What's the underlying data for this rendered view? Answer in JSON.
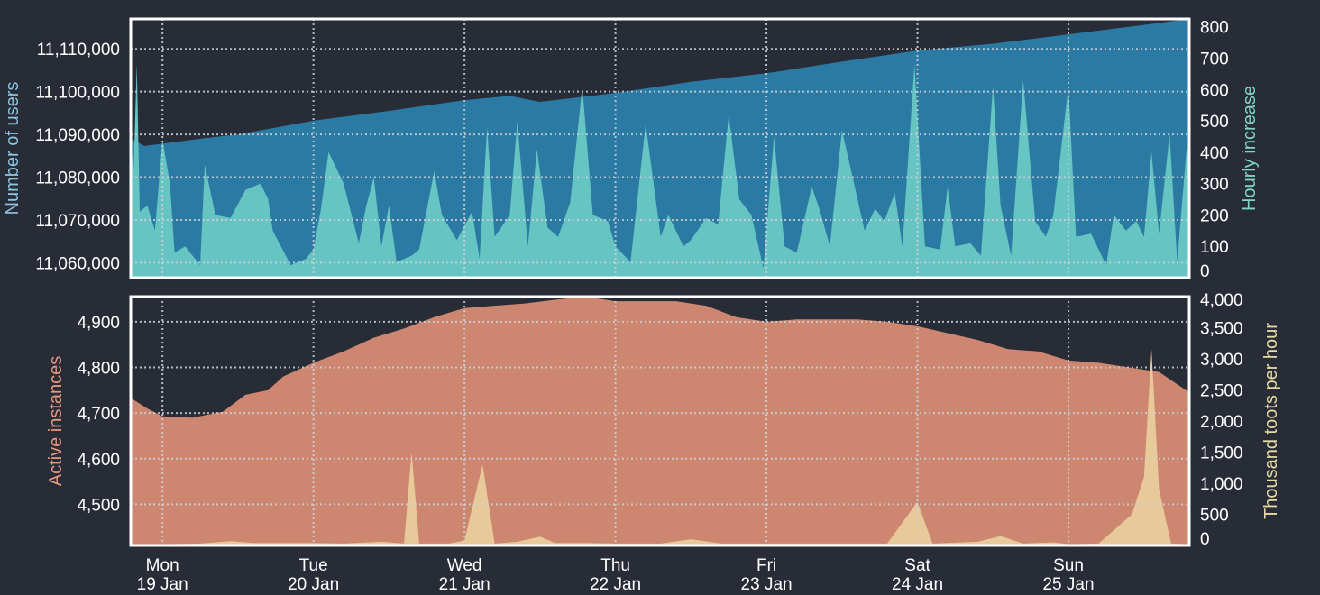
{
  "colors": {
    "background": "#282c37",
    "users_area": "#2b7aa3",
    "increase_area": "#66c4c2",
    "instances_area": "#cd8670",
    "toots_area": "#e8c99a",
    "frame": "#ffffff",
    "grid": "#cfd2d8",
    "users_label": "#8dc4e0",
    "increase_label": "#7fd6c7",
    "instances_label": "#e5987f",
    "toots_label": "#e6dba4"
  },
  "chart_data": [
    {
      "type": "area",
      "panel": "top",
      "grid": true,
      "left_axis": {
        "label": "Number of users",
        "range": [
          11056500,
          11117000
        ],
        "ticks": [
          11060000,
          11070000,
          11080000,
          11090000,
          11100000,
          11110000
        ],
        "tick_labels": [
          "11,060,000",
          "11,070,000",
          "11,080,000",
          "11,090,000",
          "11,100,000",
          "11,110,000"
        ]
      },
      "right_axis": {
        "label": "Hourly increase",
        "range": [
          0,
          825
        ],
        "ticks": [
          0,
          100,
          200,
          300,
          400,
          500,
          600,
          700,
          800
        ],
        "tick_labels": [
          "0",
          "100",
          "200",
          "300",
          "400",
          "500",
          "600",
          "700",
          "800"
        ]
      },
      "x_axis": {
        "unit": "days",
        "range": [
          -0.21,
          6.8
        ],
        "day_ticks": [
          0,
          1,
          2,
          3,
          4,
          5,
          6
        ]
      },
      "series": [
        {
          "axis": "left",
          "points": [
            [
              -0.21,
              11089000
            ],
            [
              -0.12,
              11087300
            ],
            [
              0.3,
              11089200
            ],
            [
              0.5,
              11090000
            ],
            [
              1.0,
              11093200
            ],
            [
              1.5,
              11095500
            ],
            [
              2.0,
              11098000
            ],
            [
              2.3,
              11099000
            ],
            [
              2.5,
              11097600
            ],
            [
              3.0,
              11099700
            ],
            [
              3.5,
              11102300
            ],
            [
              4.0,
              11104300
            ],
            [
              4.5,
              11107000
            ],
            [
              5.0,
              11109600
            ],
            [
              5.5,
              11111200
            ],
            [
              6.0,
              11113400
            ],
            [
              6.5,
              11115600
            ],
            [
              6.8,
              11117000
            ]
          ]
        },
        {
          "axis": "right",
          "points": [
            [
              -0.21,
              420
            ],
            [
              -0.19,
              350
            ],
            [
              -0.17,
              680
            ],
            [
              -0.15,
              210
            ],
            [
              -0.1,
              230
            ],
            [
              -0.05,
              150
            ],
            [
              0.0,
              440
            ],
            [
              0.05,
              300
            ],
            [
              0.08,
              80
            ],
            [
              0.15,
              100
            ],
            [
              0.25,
              40
            ],
            [
              0.28,
              360
            ],
            [
              0.35,
              200
            ],
            [
              0.45,
              190
            ],
            [
              0.55,
              280
            ],
            [
              0.65,
              300
            ],
            [
              0.7,
              250
            ],
            [
              0.73,
              150
            ],
            [
              0.85,
              40
            ],
            [
              0.95,
              60
            ],
            [
              1.0,
              90
            ],
            [
              1.05,
              220
            ],
            [
              1.1,
              400
            ],
            [
              1.2,
              300
            ],
            [
              1.3,
              110
            ],
            [
              1.35,
              230
            ],
            [
              1.4,
              320
            ],
            [
              1.45,
              100
            ],
            [
              1.5,
              230
            ],
            [
              1.55,
              50
            ],
            [
              1.65,
              70
            ],
            [
              1.7,
              90
            ],
            [
              1.8,
              340
            ],
            [
              1.85,
              200
            ],
            [
              1.95,
              120
            ],
            [
              2.05,
              210
            ],
            [
              2.1,
              60
            ],
            [
              2.15,
              480
            ],
            [
              2.2,
              130
            ],
            [
              2.3,
              200
            ],
            [
              2.35,
              500
            ],
            [
              2.42,
              100
            ],
            [
              2.48,
              410
            ],
            [
              2.55,
              160
            ],
            [
              2.62,
              130
            ],
            [
              2.7,
              240
            ],
            [
              2.78,
              610
            ],
            [
              2.85,
              200
            ],
            [
              2.95,
              180
            ],
            [
              3.0,
              100
            ],
            [
              3.1,
              50
            ],
            [
              3.2,
              490
            ],
            [
              3.3,
              130
            ],
            [
              3.35,
              200
            ],
            [
              3.45,
              100
            ],
            [
              3.5,
              120
            ],
            [
              3.6,
              190
            ],
            [
              3.68,
              170
            ],
            [
              3.75,
              520
            ],
            [
              3.82,
              250
            ],
            [
              3.9,
              200
            ],
            [
              3.98,
              30
            ],
            [
              4.05,
              450
            ],
            [
              4.12,
              100
            ],
            [
              4.2,
              80
            ],
            [
              4.3,
              290
            ],
            [
              4.35,
              220
            ],
            [
              4.42,
              100
            ],
            [
              4.5,
              470
            ],
            [
              4.58,
              300
            ],
            [
              4.65,
              150
            ],
            [
              4.72,
              220
            ],
            [
              4.78,
              180
            ],
            [
              4.85,
              270
            ],
            [
              4.9,
              100
            ],
            [
              4.98,
              680
            ],
            [
              5.05,
              100
            ],
            [
              5.15,
              90
            ],
            [
              5.2,
              290
            ],
            [
              5.25,
              100
            ],
            [
              5.35,
              110
            ],
            [
              5.42,
              70
            ],
            [
              5.5,
              610
            ],
            [
              5.55,
              230
            ],
            [
              5.62,
              70
            ],
            [
              5.7,
              630
            ],
            [
              5.78,
              180
            ],
            [
              5.85,
              130
            ],
            [
              5.9,
              200
            ],
            [
              6.0,
              610
            ],
            [
              6.05,
              130
            ],
            [
              6.15,
              140
            ],
            [
              6.25,
              40
            ],
            [
              6.3,
              200
            ],
            [
              6.38,
              150
            ],
            [
              6.45,
              180
            ],
            [
              6.5,
              130
            ],
            [
              6.55,
              400
            ],
            [
              6.6,
              140
            ],
            [
              6.67,
              460
            ],
            [
              6.72,
              50
            ],
            [
              6.78,
              400
            ],
            [
              6.8,
              420
            ]
          ]
        }
      ]
    },
    {
      "type": "area",
      "panel": "bottom",
      "grid": true,
      "left_axis": {
        "label": "Active instances",
        "range": [
          4410,
          4955
        ],
        "ticks": [
          4500,
          4600,
          4700,
          4800,
          4900
        ],
        "tick_labels": [
          "4,500",
          "4,600",
          "4,700",
          "4,800",
          "4,900"
        ]
      },
      "right_axis": {
        "label": "Thousand toots per hour",
        "range": [
          0,
          4000
        ],
        "ticks": [
          0,
          500,
          1000,
          1500,
          2000,
          2500,
          3000,
          3500,
          4000
        ],
        "tick_labels": [
          "0",
          "500",
          "1,000",
          "1,500",
          "2,000",
          "2,500",
          "3,000",
          "3,500",
          "4,000"
        ]
      },
      "x_axis": {
        "unit": "days",
        "range": [
          -0.21,
          6.8
        ],
        "day_ticks": [
          0,
          1,
          2,
          3,
          4,
          5,
          6
        ],
        "day_labels": [
          [
            "Mon",
            "19 Jan"
          ],
          [
            "Tue",
            "20 Jan"
          ],
          [
            "Wed",
            "21 Jan"
          ],
          [
            "Thu",
            "22 Jan"
          ],
          [
            "Fri",
            "23 Jan"
          ],
          [
            "Sat",
            "24 Jan"
          ],
          [
            "Sun",
            "25 Jan"
          ]
        ]
      },
      "series": [
        {
          "axis": "left",
          "points": [
            [
              -0.21,
              4733
            ],
            [
              -0.1,
              4710
            ],
            [
              0.0,
              4693
            ],
            [
              0.2,
              4690
            ],
            [
              0.4,
              4703
            ],
            [
              0.55,
              4740
            ],
            [
              0.7,
              4750
            ],
            [
              0.8,
              4780
            ],
            [
              1.0,
              4810
            ],
            [
              1.2,
              4835
            ],
            [
              1.4,
              4865
            ],
            [
              1.6,
              4885
            ],
            [
              1.8,
              4910
            ],
            [
              2.0,
              4930
            ],
            [
              2.2,
              4935
            ],
            [
              2.4,
              4940
            ],
            [
              2.6,
              4948
            ],
            [
              2.8,
              4955
            ],
            [
              3.0,
              4945
            ],
            [
              3.2,
              4945
            ],
            [
              3.4,
              4945
            ],
            [
              3.6,
              4935
            ],
            [
              3.8,
              4910
            ],
            [
              4.0,
              4900
            ],
            [
              4.2,
              4905
            ],
            [
              4.4,
              4905
            ],
            [
              4.6,
              4905
            ],
            [
              4.8,
              4900
            ],
            [
              5.0,
              4890
            ],
            [
              5.2,
              4875
            ],
            [
              5.4,
              4860
            ],
            [
              5.6,
              4840
            ],
            [
              5.8,
              4835
            ],
            [
              6.0,
              4815
            ],
            [
              6.2,
              4810
            ],
            [
              6.4,
              4800
            ],
            [
              6.6,
              4790
            ],
            [
              6.8,
              4745
            ]
          ]
        },
        {
          "axis": "right",
          "points": [
            [
              -0.21,
              0
            ],
            [
              0.0,
              20
            ],
            [
              0.25,
              30
            ],
            [
              0.45,
              70
            ],
            [
              0.6,
              40
            ],
            [
              1.0,
              40
            ],
            [
              1.2,
              30
            ],
            [
              1.45,
              60
            ],
            [
              1.6,
              30
            ],
            [
              1.65,
              1500
            ],
            [
              1.7,
              30
            ],
            [
              1.9,
              30
            ],
            [
              2.0,
              80
            ],
            [
              2.12,
              1300
            ],
            [
              2.2,
              30
            ],
            [
              2.35,
              60
            ],
            [
              2.5,
              140
            ],
            [
              2.6,
              40
            ],
            [
              2.8,
              40
            ],
            [
              3.0,
              30
            ],
            [
              3.3,
              30
            ],
            [
              3.5,
              100
            ],
            [
              3.7,
              30
            ],
            [
              3.9,
              30
            ],
            [
              4.1,
              30
            ],
            [
              4.3,
              30
            ],
            [
              4.6,
              30
            ],
            [
              4.8,
              30
            ],
            [
              5.0,
              700
            ],
            [
              5.1,
              30
            ],
            [
              5.4,
              60
            ],
            [
              5.55,
              150
            ],
            [
              5.7,
              30
            ],
            [
              5.9,
              50
            ],
            [
              6.0,
              20
            ],
            [
              6.2,
              30
            ],
            [
              6.42,
              500
            ],
            [
              6.5,
              1100
            ],
            [
              6.55,
              3150
            ],
            [
              6.6,
              900
            ],
            [
              6.68,
              30
            ],
            [
              6.8,
              20
            ]
          ]
        }
      ]
    }
  ]
}
